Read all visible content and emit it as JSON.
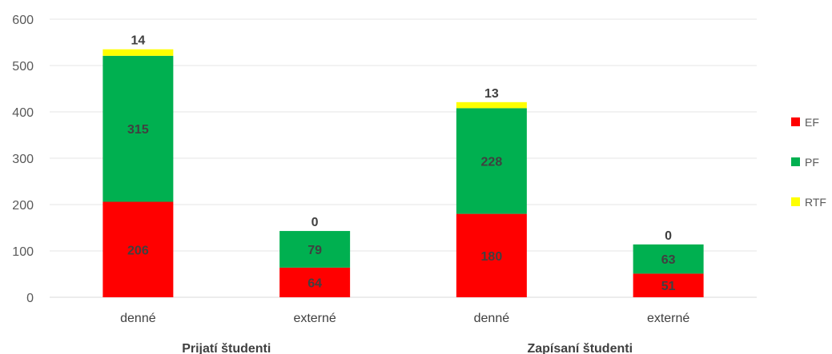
{
  "chart_data": {
    "type": "bar",
    "stacked": true,
    "ylim": [
      0,
      600
    ],
    "yticks": [
      0,
      100,
      200,
      300,
      400,
      500,
      600
    ],
    "grid": true,
    "legend_position": "right",
    "categories": [
      "denné",
      "externé",
      "denné",
      "externé"
    ],
    "groups": [
      {
        "label": "Prijatí študenti",
        "categories": [
          0,
          1
        ]
      },
      {
        "label": "Zapísaní študenti",
        "categories": [
          2,
          3
        ]
      }
    ],
    "series": [
      {
        "name": "EF",
        "color": "#ff0000",
        "values": [
          206,
          64,
          180,
          51
        ]
      },
      {
        "name": "PF",
        "color": "#00b050",
        "values": [
          315,
          79,
          228,
          63
        ]
      },
      {
        "name": "RTF",
        "color": "#ffff00",
        "values": [
          14,
          0,
          13,
          0
        ]
      }
    ]
  }
}
